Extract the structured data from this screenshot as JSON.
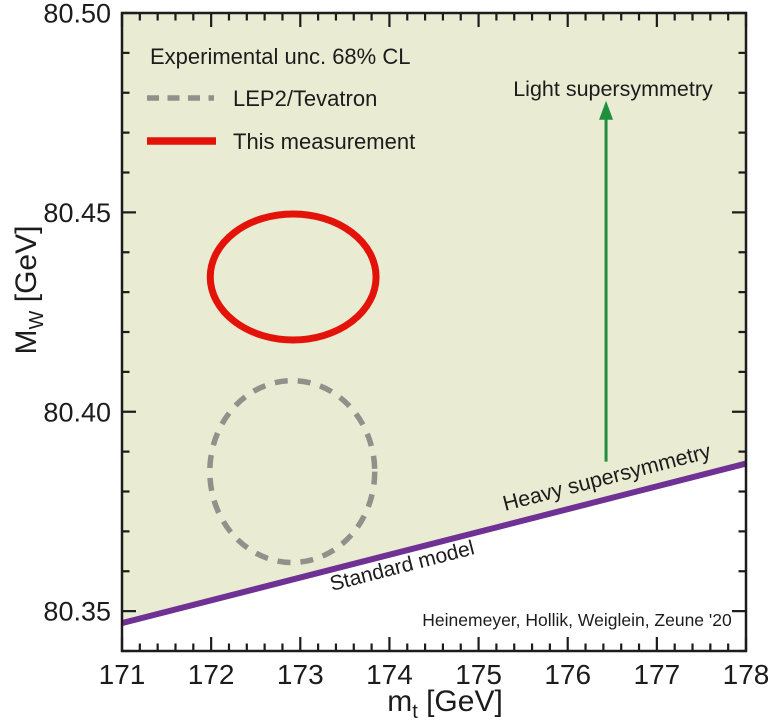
{
  "figure": {
    "attribution": "Heinemeyer, Hollik, Weiglein, Zeune '20"
  },
  "axes": {
    "x_main": "m",
    "x_sub": "t",
    "x_unit": " [GeV]",
    "y_main": "M",
    "y_sub": "W",
    "y_unit": " [GeV]"
  },
  "legend": {
    "title": "Experimental unc. 68% CL",
    "entries": [
      {
        "label": "LEP2/Tevatron",
        "style": "dashed",
        "color": "#92908b"
      },
      {
        "label": "This measurement",
        "style": "solid",
        "color": "#e41309"
      }
    ]
  },
  "annotations": {
    "light_susy": {
      "text": "Light supersymmetry",
      "color": "#1f8e3d"
    },
    "heavy_susy": {
      "text": "Heavy supersymmetry",
      "color": "#1f8e3d"
    },
    "standard_model": {
      "text": "Standard model",
      "color": "#6f3194"
    }
  },
  "chart_data": {
    "type": "line",
    "title": "",
    "xlabel": "m_t [GeV]",
    "ylabel": "M_W [GeV]",
    "xlim": [
      171,
      178
    ],
    "ylim": [
      80.34,
      80.5
    ],
    "x_major_ticks": [
      171,
      172,
      173,
      174,
      175,
      176,
      177,
      178
    ],
    "x_minor_step": 0.2,
    "y_major_ticks": [
      80.35,
      80.4,
      80.45,
      80.5
    ],
    "y_major_tick_labels": [
      "80.35",
      "80.40",
      "80.45",
      "80.50"
    ],
    "y_minor_step": 0.01,
    "grid": false,
    "legend_position": "upper-left-inside",
    "region": {
      "name": "supersymmetry-allowed-region",
      "note": "shaded area above SM line",
      "fill": "#e9ecd2"
    },
    "sm_line": {
      "name": "Standard model prediction",
      "x": [
        171,
        178
      ],
      "y": [
        80.347,
        80.387
      ],
      "color": "#6f3194",
      "width": 6
    },
    "ellipses": [
      {
        "name": "LEP2/Tevatron 68% CL",
        "center": [
          172.91,
          80.385
        ],
        "rx": 0.925,
        "ry": 0.0228,
        "color": "#92908b",
        "style": "dashed",
        "width": 5.5
      },
      {
        "name": "This measurement 68% CL",
        "center": [
          172.92,
          80.4338
        ],
        "rx": 0.93,
        "ry": 0.0158,
        "color": "#e41309",
        "style": "solid",
        "width": 7
      }
    ],
    "arrow": {
      "name": "light-supersymmetry-direction",
      "x": 176.43,
      "y_from": 80.3875,
      "y_to": 80.478,
      "color": "#1f8e3d",
      "width": 3
    }
  }
}
